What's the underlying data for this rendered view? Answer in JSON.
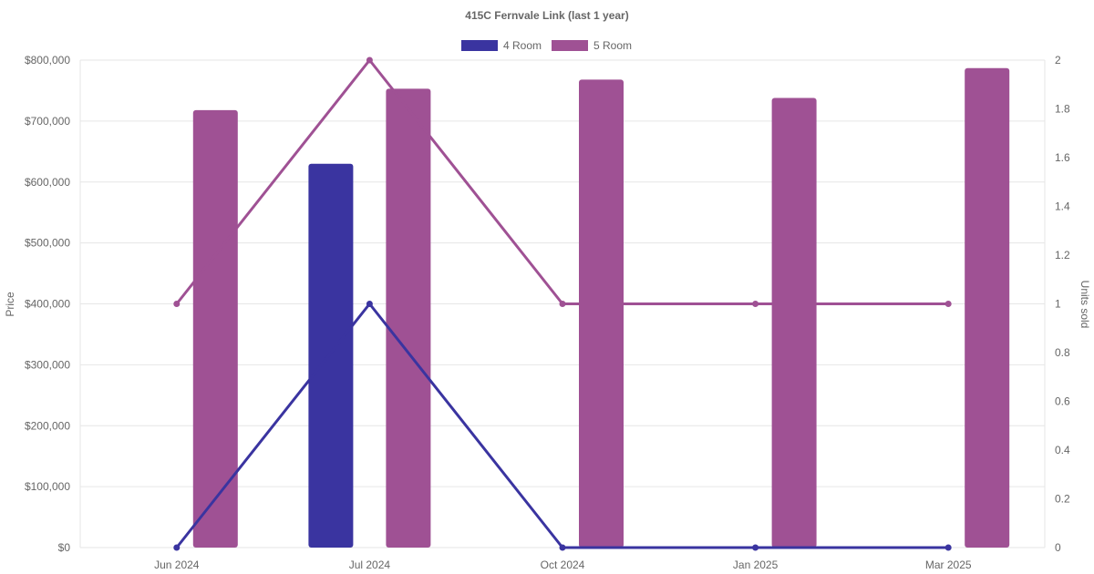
{
  "chart_data": {
    "type": "bar",
    "title": "415C Fernvale Link (last 1 year)",
    "categories": [
      "Jun 2024",
      "Jul 2024",
      "Oct 2024",
      "Jan 2025",
      "Mar 2025"
    ],
    "y_left": {
      "label": "Price",
      "range": [
        0,
        800000
      ],
      "ticks": [
        "$0",
        "$100,000",
        "$200,000",
        "$300,000",
        "$400,000",
        "$500,000",
        "$600,000",
        "$700,000",
        "$800,000"
      ]
    },
    "y_right": {
      "label": "Units sold",
      "range": [
        0,
        2
      ],
      "ticks": [
        "0",
        "0.2",
        "0.4",
        "0.6",
        "0.8",
        "1",
        "1.2",
        "1.4",
        "1.6",
        "1.8",
        "2"
      ]
    },
    "legend": {
      "placement": "top-center"
    },
    "grid": true,
    "series": [
      {
        "name": "4 Room",
        "color": "#3a34a0",
        "price": [
          null,
          630000,
          null,
          null,
          null
        ],
        "units_sold": [
          0,
          1,
          0,
          0,
          0
        ]
      },
      {
        "name": "5 Room",
        "color": "#9f5194",
        "price": [
          718000,
          753000,
          768000,
          738000,
          787000
        ],
        "units_sold": [
          1,
          2,
          1,
          1,
          1
        ]
      }
    ]
  }
}
